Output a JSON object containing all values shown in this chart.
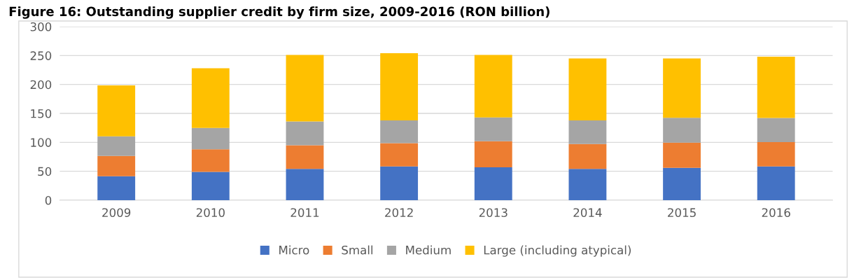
{
  "chart_data": {
    "type": "bar",
    "stacked": true,
    "title": "Figure 16: Outstanding supplier credit by firm size, 2009-2016 (RON billion)",
    "categories": [
      "2009",
      "2010",
      "2011",
      "2012",
      "2013",
      "2014",
      "2015",
      "2016"
    ],
    "series": [
      {
        "name": "Micro",
        "color": "#4472c4",
        "values": [
          41.5,
          49,
          54,
          58.5,
          57,
          54,
          56,
          58.5
        ]
      },
      {
        "name": "Small",
        "color": "#ed7d31",
        "values": [
          35,
          39,
          41,
          40,
          45,
          43,
          43.5,
          42
        ]
      },
      {
        "name": "Medium",
        "color": "#a5a5a5",
        "values": [
          34,
          37,
          41,
          39.5,
          41,
          41,
          43,
          41.5
        ]
      },
      {
        "name": "Large (including atypical)",
        "color": "#ffc000",
        "values": [
          88,
          103,
          115,
          116,
          108,
          107,
          102.5,
          106
        ]
      }
    ],
    "ylim": [
      0,
      300
    ],
    "yticks": [
      0,
      50,
      100,
      150,
      200,
      250,
      300
    ],
    "grid": "y",
    "legend": "bottom"
  }
}
